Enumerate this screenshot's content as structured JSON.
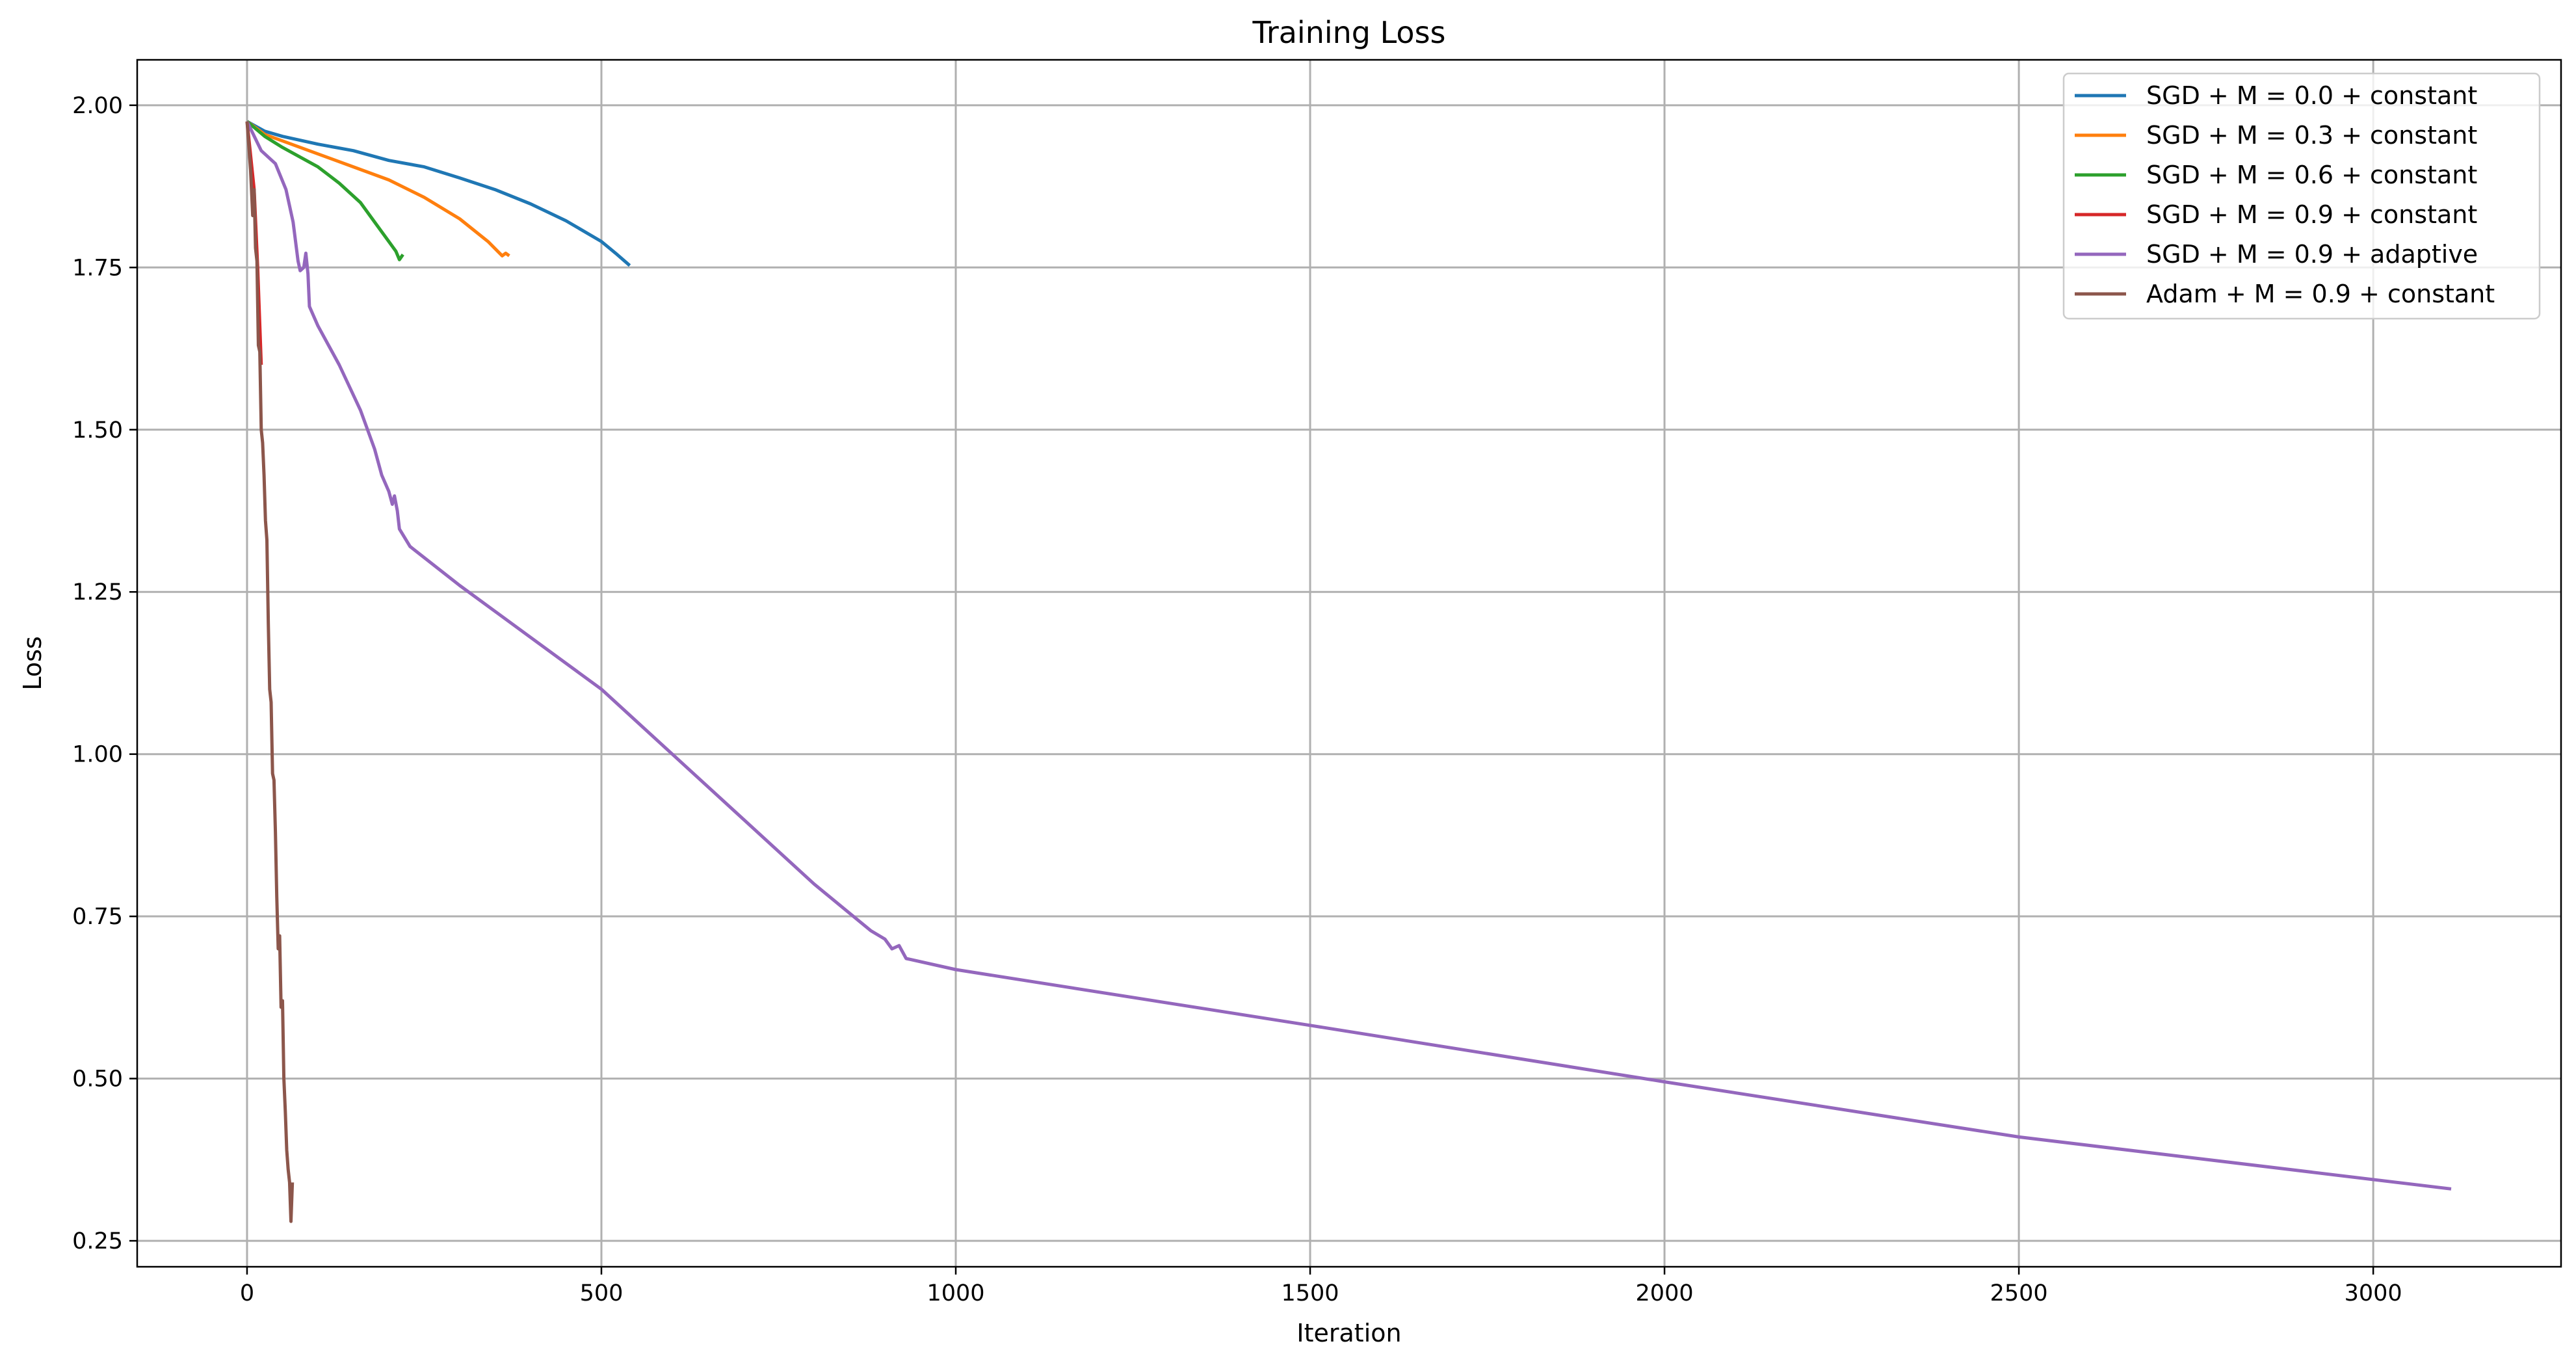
{
  "chart_data": {
    "type": "line",
    "title": "Training Loss",
    "xlabel": "Iteration",
    "ylabel": "Loss",
    "xlim": [
      -155,
      3265
    ],
    "ylim": [
      0.21,
      2.07
    ],
    "xticks": [
      0,
      500,
      1000,
      1500,
      2000,
      2500,
      3000
    ],
    "xtick_labels": [
      "0",
      "500",
      "1000",
      "1500",
      "2000",
      "2500",
      "3000"
    ],
    "yticks": [
      0.25,
      0.5,
      0.75,
      1.0,
      1.25,
      1.5,
      1.75,
      2.0
    ],
    "ytick_labels": [
      "0.25",
      "0.50",
      "0.75",
      "1.00",
      "1.25",
      "1.50",
      "1.75",
      "2.00"
    ],
    "grid": true,
    "legend_position": "top-right",
    "series": [
      {
        "name": "SGD + M = 0.0 + constant",
        "color": "#1f77b4",
        "points": [
          [
            0,
            1.975
          ],
          [
            25,
            1.96
          ],
          [
            50,
            1.952
          ],
          [
            100,
            1.94
          ],
          [
            150,
            1.93
          ],
          [
            200,
            1.915
          ],
          [
            250,
            1.905
          ],
          [
            300,
            1.888
          ],
          [
            350,
            1.87
          ],
          [
            400,
            1.848
          ],
          [
            450,
            1.822
          ],
          [
            500,
            1.79
          ],
          [
            520,
            1.772
          ],
          [
            540,
            1.753
          ]
        ]
      },
      {
        "name": "SGD + M = 0.3 + constant",
        "color": "#ff7f0e",
        "points": [
          [
            0,
            1.975
          ],
          [
            25,
            1.955
          ],
          [
            50,
            1.945
          ],
          [
            100,
            1.925
          ],
          [
            150,
            1.905
          ],
          [
            200,
            1.885
          ],
          [
            250,
            1.858
          ],
          [
            300,
            1.825
          ],
          [
            340,
            1.79
          ],
          [
            360,
            1.768
          ],
          [
            365,
            1.772
          ],
          [
            370,
            1.768
          ]
        ]
      },
      {
        "name": "SGD + M = 0.6 + constant",
        "color": "#2ca02c",
        "points": [
          [
            0,
            1.975
          ],
          [
            25,
            1.952
          ],
          [
            50,
            1.935
          ],
          [
            100,
            1.905
          ],
          [
            130,
            1.88
          ],
          [
            160,
            1.85
          ],
          [
            180,
            1.82
          ],
          [
            200,
            1.79
          ],
          [
            210,
            1.775
          ],
          [
            215,
            1.762
          ],
          [
            220,
            1.77
          ]
        ]
      },
      {
        "name": "SGD + M = 0.9 + constant",
        "color": "#d62728",
        "points": [
          [
            0,
            1.975
          ],
          [
            10,
            1.87
          ],
          [
            15,
            1.75
          ],
          [
            20,
            1.6
          ]
        ]
      },
      {
        "name": "SGD + M = 0.9 + adaptive",
        "color": "#9467bd",
        "points": [
          [
            0,
            1.975
          ],
          [
            20,
            1.93
          ],
          [
            40,
            1.91
          ],
          [
            55,
            1.87
          ],
          [
            65,
            1.82
          ],
          [
            72,
            1.76
          ],
          [
            75,
            1.745
          ],
          [
            80,
            1.75
          ],
          [
            83,
            1.772
          ],
          [
            86,
            1.74
          ],
          [
            88,
            1.69
          ],
          [
            100,
            1.66
          ],
          [
            130,
            1.6
          ],
          [
            160,
            1.53
          ],
          [
            180,
            1.47
          ],
          [
            190,
            1.43
          ],
          [
            200,
            1.405
          ],
          [
            205,
            1.385
          ],
          [
            208,
            1.398
          ],
          [
            212,
            1.375
          ],
          [
            215,
            1.347
          ],
          [
            230,
            1.32
          ],
          [
            300,
            1.26
          ],
          [
            400,
            1.18
          ],
          [
            500,
            1.1
          ],
          [
            600,
            1.0
          ],
          [
            700,
            0.9
          ],
          [
            800,
            0.8
          ],
          [
            850,
            0.755
          ],
          [
            880,
            0.728
          ],
          [
            900,
            0.715
          ],
          [
            910,
            0.7
          ],
          [
            920,
            0.705
          ],
          [
            930,
            0.685
          ],
          [
            1000,
            0.668
          ],
          [
            1500,
            0.582
          ],
          [
            2000,
            0.495
          ],
          [
            2500,
            0.41
          ],
          [
            3110,
            0.33
          ]
        ]
      },
      {
        "name": "Adam + M = 0.9 + constant",
        "color": "#8c564b",
        "points": [
          [
            0,
            1.975
          ],
          [
            5,
            1.9
          ],
          [
            8,
            1.83
          ],
          [
            10,
            1.87
          ],
          [
            12,
            1.78
          ],
          [
            14,
            1.76
          ],
          [
            16,
            1.63
          ],
          [
            18,
            1.62
          ],
          [
            20,
            1.5
          ],
          [
            22,
            1.48
          ],
          [
            24,
            1.43
          ],
          [
            26,
            1.36
          ],
          [
            28,
            1.33
          ],
          [
            30,
            1.2
          ],
          [
            32,
            1.1
          ],
          [
            34,
            1.08
          ],
          [
            36,
            0.97
          ],
          [
            38,
            0.96
          ],
          [
            40,
            0.88
          ],
          [
            42,
            0.78
          ],
          [
            44,
            0.7
          ],
          [
            46,
            0.72
          ],
          [
            48,
            0.61
          ],
          [
            50,
            0.62
          ],
          [
            52,
            0.5
          ],
          [
            54,
            0.45
          ],
          [
            56,
            0.39
          ],
          [
            58,
            0.36
          ],
          [
            60,
            0.34
          ],
          [
            62,
            0.28
          ],
          [
            64,
            0.34
          ]
        ]
      }
    ]
  }
}
